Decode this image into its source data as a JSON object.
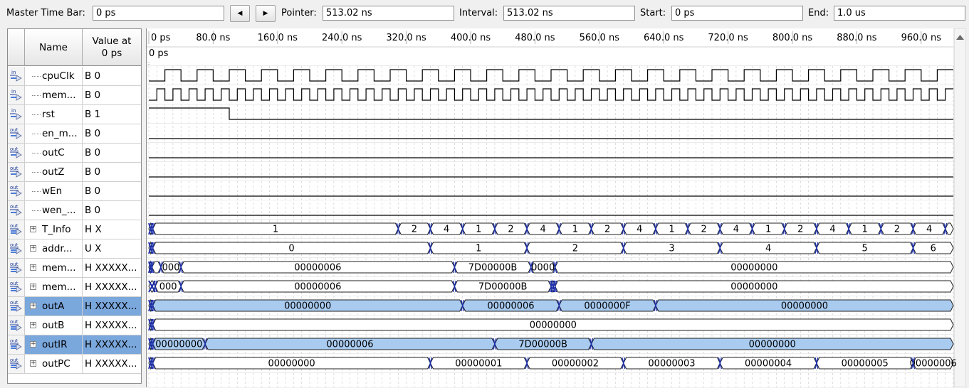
{
  "toolbar": {
    "master_label": "Master Time Bar:",
    "master_value": "0 ps",
    "prev_icon": "triangle-left",
    "next_icon": "triangle-right",
    "pointer_label": "Pointer:",
    "pointer_value": "513.02 ns",
    "interval_label": "Interval:",
    "interval_value": "513.02 ns",
    "start_label": "Start:",
    "start_value": "0 ps",
    "end_label": "End:",
    "end_value": "1.0 us"
  },
  "table": {
    "name_header": "Name",
    "value_header_1": "Value at",
    "value_header_2": "0 ps"
  },
  "signals": [
    {
      "name": "cpuClk",
      "value": "B 0",
      "dir": "in",
      "kind": "bit",
      "expandable": false,
      "selected": false
    },
    {
      "name": "mem...",
      "value": "B 0",
      "dir": "in",
      "kind": "bit",
      "expandable": false,
      "selected": false
    },
    {
      "name": "rst",
      "value": "B 1",
      "dir": "in",
      "kind": "bit",
      "expandable": false,
      "selected": false
    },
    {
      "name": "en_m...",
      "value": "B 0",
      "dir": "out",
      "kind": "bit",
      "expandable": false,
      "selected": false
    },
    {
      "name": "outC",
      "value": "B 0",
      "dir": "out",
      "kind": "bit",
      "expandable": false,
      "selected": false
    },
    {
      "name": "outZ",
      "value": "B 0",
      "dir": "out",
      "kind": "bit",
      "expandable": false,
      "selected": false
    },
    {
      "name": "wEn",
      "value": "B 0",
      "dir": "out",
      "kind": "bit",
      "expandable": false,
      "selected": false
    },
    {
      "name": "wen_...",
      "value": "B 0",
      "dir": "out",
      "kind": "bit",
      "expandable": false,
      "selected": false
    },
    {
      "name": "T_Info",
      "value": "H X",
      "dir": "out",
      "kind": "bus",
      "expandable": true,
      "selected": false
    },
    {
      "name": "addr...",
      "value": "U X",
      "dir": "out",
      "kind": "bus",
      "expandable": true,
      "selected": false
    },
    {
      "name": "mem...",
      "value": "H XXXXX...",
      "dir": "out",
      "kind": "bus",
      "expandable": true,
      "selected": false
    },
    {
      "name": "mem...",
      "value": "H XXXXX...",
      "dir": "out",
      "kind": "bus",
      "expandable": true,
      "selected": false
    },
    {
      "name": "outA",
      "value": "H XXXXX...",
      "dir": "out",
      "kind": "bus",
      "expandable": true,
      "selected": true
    },
    {
      "name": "outB",
      "value": "H XXXXX...",
      "dir": "out",
      "kind": "bus",
      "expandable": true,
      "selected": false
    },
    {
      "name": "outIR",
      "value": "H XXXXX...",
      "dir": "out",
      "kind": "bus",
      "expandable": true,
      "selected": true
    },
    {
      "name": "outPC",
      "value": "H XXXXX...",
      "dir": "out",
      "kind": "bus",
      "expandable": true,
      "selected": false
    }
  ],
  "timeline": {
    "unit": "ns",
    "end_time_ns": 1000,
    "marker_label": "0 ps",
    "tick_labels": [
      {
        "t": 0,
        "label": "0 ps"
      },
      {
        "t": 80,
        "label": "80.0 ns"
      },
      {
        "t": 160,
        "label": "160.0 ns"
      },
      {
        "t": 240,
        "label": "240.0 ns"
      },
      {
        "t": 320,
        "label": "320.0 ns"
      },
      {
        "t": 400,
        "label": "400.0 ns"
      },
      {
        "t": 480,
        "label": "480.0 ns"
      },
      {
        "t": 560,
        "label": "560.0 ns"
      },
      {
        "t": 640,
        "label": "640.0 ns"
      },
      {
        "t": 720,
        "label": "720.0 ns"
      },
      {
        "t": 800,
        "label": "800.0 ns"
      },
      {
        "t": 880,
        "label": "880.0 ns"
      },
      {
        "t": 960,
        "label": "960.0 ns"
      }
    ]
  },
  "waveforms": [
    {
      "type": "clock",
      "period_ns": 40,
      "first_high_ns": 20
    },
    {
      "type": "clock",
      "period_ns": 20,
      "first_high_ns": 10
    },
    {
      "type": "bit",
      "changes": [
        [
          0,
          1
        ],
        [
          100,
          0
        ]
      ]
    },
    {
      "type": "bit",
      "changes": [
        [
          0,
          0
        ]
      ]
    },
    {
      "type": "bit",
      "changes": [
        [
          0,
          0
        ]
      ]
    },
    {
      "type": "bit",
      "changes": [
        [
          0,
          0
        ]
      ]
    },
    {
      "type": "bit",
      "changes": [
        [
          0,
          0
        ]
      ]
    },
    {
      "type": "bit",
      "changes": [
        [
          0,
          0
        ]
      ]
    },
    {
      "type": "bus",
      "segments": [
        {
          "start": 0,
          "value": ""
        },
        {
          "start": 5,
          "value": "1"
        },
        {
          "start": 310,
          "value": "2"
        },
        {
          "start": 350,
          "value": "4"
        },
        {
          "start": 390,
          "value": "1"
        },
        {
          "start": 430,
          "value": "2"
        },
        {
          "start": 470,
          "value": "4"
        },
        {
          "start": 510,
          "value": "1"
        },
        {
          "start": 550,
          "value": "2"
        },
        {
          "start": 590,
          "value": "4"
        },
        {
          "start": 630,
          "value": "1"
        },
        {
          "start": 670,
          "value": "2"
        },
        {
          "start": 710,
          "value": "4"
        },
        {
          "start": 750,
          "value": "1"
        },
        {
          "start": 790,
          "value": "2"
        },
        {
          "start": 830,
          "value": "4"
        },
        {
          "start": 870,
          "value": "1"
        },
        {
          "start": 910,
          "value": "2"
        },
        {
          "start": 950,
          "value": "4"
        },
        {
          "start": 990,
          "value": ""
        }
      ]
    },
    {
      "type": "bus",
      "segments": [
        {
          "start": 0,
          "value": ""
        },
        {
          "start": 5,
          "value": "0"
        },
        {
          "start": 350,
          "value": "1"
        },
        {
          "start": 470,
          "value": "2"
        },
        {
          "start": 590,
          "value": "3"
        },
        {
          "start": 710,
          "value": "4"
        },
        {
          "start": 830,
          "value": "5"
        },
        {
          "start": 950,
          "value": "6"
        }
      ]
    },
    {
      "type": "bus",
      "segments": [
        {
          "start": 0,
          "value": ""
        },
        {
          "start": 4,
          "value": ""
        },
        {
          "start": 15,
          "value": "000"
        },
        {
          "start": 40,
          "value": "00000006"
        },
        {
          "start": 380,
          "value": "7D00000B"
        },
        {
          "start": 475,
          "value": "0000"
        },
        {
          "start": 505,
          "value": "00000000"
        }
      ]
    },
    {
      "type": "bus",
      "segments": [
        {
          "start": 0,
          "value": ""
        },
        {
          "start": 8,
          "value": "000"
        },
        {
          "start": 40,
          "value": "00000006"
        },
        {
          "start": 380,
          "value": "7D00000B"
        },
        {
          "start": 500,
          "value": ""
        },
        {
          "start": 505,
          "value": "00000000"
        }
      ]
    },
    {
      "type": "bus",
      "segments": [
        {
          "start": 0,
          "value": ""
        },
        {
          "start": 5,
          "value": "00000000"
        },
        {
          "start": 390,
          "value": "00000006"
        },
        {
          "start": 510,
          "value": "0000000F"
        },
        {
          "start": 630,
          "value": "00000000"
        }
      ]
    },
    {
      "type": "bus",
      "segments": [
        {
          "start": 0,
          "value": ""
        },
        {
          "start": 5,
          "value": "00000000"
        }
      ]
    },
    {
      "type": "bus",
      "segments": [
        {
          "start": 0,
          "value": ""
        },
        {
          "start": 5,
          "value": "00000000"
        },
        {
          "start": 70,
          "value": "00000006"
        },
        {
          "start": 430,
          "value": "7D00000B"
        },
        {
          "start": 550,
          "value": "00000000"
        }
      ]
    },
    {
      "type": "bus",
      "segments": [
        {
          "start": 0,
          "value": ""
        },
        {
          "start": 5,
          "value": "00000000"
        },
        {
          "start": 350,
          "value": "00000001"
        },
        {
          "start": 470,
          "value": "00000002"
        },
        {
          "start": 590,
          "value": "00000003"
        },
        {
          "start": 710,
          "value": "00000004"
        },
        {
          "start": 830,
          "value": "00000005"
        },
        {
          "start": 950,
          "value": "00000006"
        }
      ]
    }
  ],
  "colors": {
    "wave_line": "#000000",
    "bus_edge": "#1c2fa8",
    "selected_fill": "#a9cbf0",
    "selected_cell": "#7aa7dc",
    "grid": "#c8c8c8"
  }
}
